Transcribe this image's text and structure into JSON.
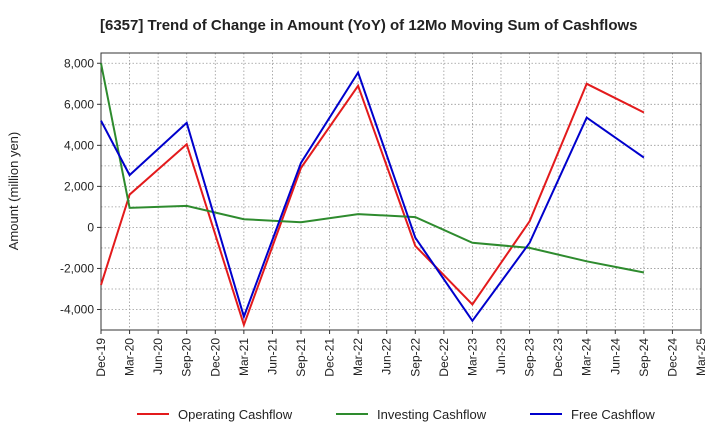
{
  "chart_data": {
    "type": "line",
    "title": "[6357]  Trend of Change in Amount (YoY) of 12Mo Moving Sum of Cashflows",
    "xlabel": "",
    "ylabel": "Amount (million yen)",
    "categories": [
      "Dec-19",
      "Mar-20",
      "Jun-20",
      "Sep-20",
      "Dec-20",
      "Mar-21",
      "Jun-21",
      "Sep-21",
      "Dec-21",
      "Mar-22",
      "Jun-22",
      "Sep-22",
      "Dec-22",
      "Mar-23",
      "Jun-23",
      "Sep-23",
      "Dec-23",
      "Mar-24",
      "Jun-24",
      "Sep-24",
      "Dec-24",
      "Mar-25"
    ],
    "ylim": [
      -5000,
      8500
    ],
    "yticks": [
      -4000,
      -2000,
      0,
      2000,
      4000,
      6000,
      8000
    ],
    "ytick_labels": [
      "-4,000",
      "-2,000",
      "0",
      "2,000",
      "4,000",
      "6,000",
      "8,000"
    ],
    "grid": true,
    "legend_position": "bottom",
    "series": [
      {
        "name": "Operating Cashflow",
        "color": "#e31a1c",
        "values": [
          -2800,
          1600,
          null,
          4050,
          null,
          -4750,
          null,
          2900,
          null,
          6900,
          null,
          -900,
          null,
          -3750,
          null,
          300,
          null,
          7000,
          null,
          5600,
          null,
          null
        ]
      },
      {
        "name": "Investing Cashflow",
        "color": "#2e8b2e",
        "values": [
          8000,
          950,
          null,
          1050,
          null,
          400,
          null,
          250,
          null,
          650,
          null,
          500,
          null,
          -750,
          null,
          -1000,
          null,
          -1650,
          null,
          -2200,
          null,
          null
        ]
      },
      {
        "name": "Free Cashflow",
        "color": "#0000cc",
        "values": [
          5200,
          2550,
          null,
          5100,
          null,
          -4350,
          null,
          3150,
          null,
          7550,
          null,
          -500,
          null,
          -4550,
          null,
          -750,
          null,
          5350,
          null,
          3400,
          null,
          null
        ]
      }
    ]
  }
}
